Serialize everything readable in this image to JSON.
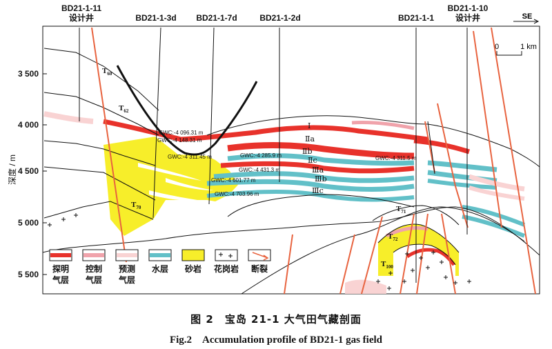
{
  "wells": {
    "bd21_1_11": {
      "name": "BD21-1-11",
      "note": "设计井"
    },
    "bd21_1_3d": {
      "name": "BD21-1-3d"
    },
    "bd21_1_7d": {
      "name": "BD21-1-7d"
    },
    "bd21_1_2d": {
      "name": "BD21-1-2d"
    },
    "bd21_1_1": {
      "name": "BD21-1-1"
    },
    "bd21_1_10": {
      "name": "BD21-1-10",
      "note": "设计井"
    }
  },
  "direction": "SE",
  "scale_bar": {
    "zero": "0",
    "length": "1 km"
  },
  "y_axis": {
    "label": "深度 / m",
    "ticks": [
      "3 500",
      "4 000",
      "4 500",
      "5 000",
      "5 500"
    ]
  },
  "horizons": [
    {
      "base": "T",
      "sub": "60"
    },
    {
      "base": "T",
      "sub": "62"
    },
    {
      "base": "T",
      "sub": "70"
    },
    {
      "base": "T",
      "sub": "71"
    },
    {
      "base": "T",
      "sub": "72"
    },
    {
      "base": "T",
      "sub": "100"
    }
  ],
  "layer_labels": [
    "Ⅰ",
    "Ⅱa",
    "Ⅱb",
    "Ⅱc",
    "Ⅲa",
    "Ⅲb",
    "Ⅲc"
  ],
  "gwc_labels": [
    "GWC:-4 096.31 m",
    "GWC:-4 148.31 m",
    "GWC:-4 311.45 m",
    "GWC:-4 285.9 m",
    "GWC:-4 431.3 m",
    "GWC:-4 601.77 m",
    "GWC:-4 703.96 m",
    "GWC:-4 311.5 m"
  ],
  "legend": [
    {
      "label1": "探明",
      "label2": "气层"
    },
    {
      "label1": "控制",
      "label2": "气层"
    },
    {
      "label1": "预测",
      "label2": "气层"
    },
    {
      "label1": "水层",
      "label2": ""
    },
    {
      "label1": "砂岩",
      "label2": ""
    },
    {
      "label1": "花岗岩",
      "label2": ""
    },
    {
      "label1": "断裂",
      "label2": ""
    }
  ],
  "colors": {
    "proven_gas": "#e8322b",
    "controlled_gas": "#f0a3ab",
    "predicted_gas": "#f9d3d3",
    "water": "#62c0c8",
    "sandstone": "#f7ee2a",
    "fault": "#e8633f",
    "line": "#111111"
  },
  "caption": {
    "cn": "图 2　宝岛 21-1 大气田气藏剖面",
    "en": "Fig.2　Accumulation profile of BD21-1 gas field"
  }
}
